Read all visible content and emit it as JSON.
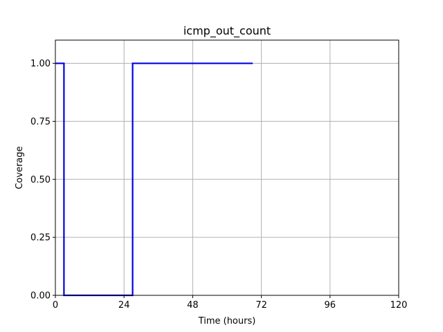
{
  "chart_data": {
    "type": "line",
    "title": "icmp_out_count",
    "xlabel": "Time (hours)",
    "ylabel": "Coverage",
    "xlim": [
      0,
      120
    ],
    "ylim": [
      0,
      1.1
    ],
    "xticks": [
      0,
      24,
      48,
      72,
      96,
      120
    ],
    "xtick_labels": [
      "0",
      "24",
      "48",
      "72",
      "96",
      "120"
    ],
    "yticks": [
      0,
      0.25,
      0.5,
      0.75,
      1.0
    ],
    "ytick_labels": [
      "0.00",
      "0.25",
      "0.50",
      "0.75",
      "1.00"
    ],
    "grid": true,
    "series": [
      {
        "color": "#0000dd",
        "step": true,
        "x": [
          0,
          3,
          27,
          69
        ],
        "y": [
          1,
          0,
          1,
          1
        ]
      }
    ]
  }
}
